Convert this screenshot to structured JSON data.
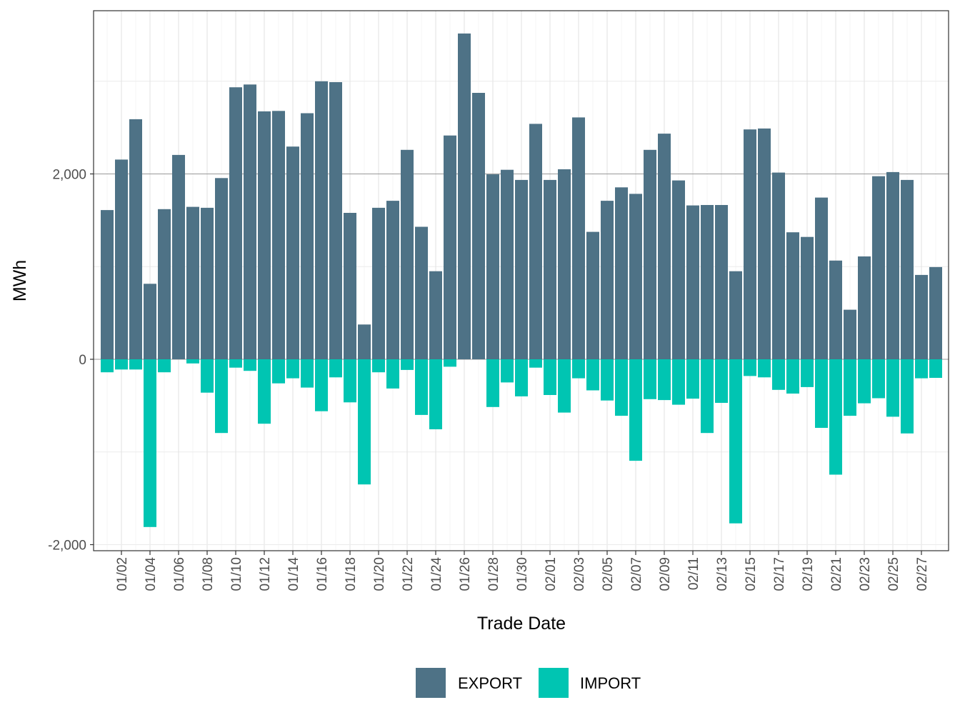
{
  "chart_data": {
    "type": "bar",
    "stacked": "diverging",
    "title": "",
    "xlabel": "Trade Date",
    "ylabel": "MWh",
    "ylim": [
      -2000,
      3600
    ],
    "y_ticks": [
      -2000,
      0,
      2000
    ],
    "y_tick_labels": [
      "-2,000",
      "0",
      "2,000"
    ],
    "categories": [
      "01/01",
      "01/02",
      "01/03",
      "01/04",
      "01/05",
      "01/06",
      "01/07",
      "01/08",
      "01/09",
      "01/10",
      "01/11",
      "01/12",
      "01/13",
      "01/14",
      "01/15",
      "01/16",
      "01/17",
      "01/18",
      "01/19",
      "01/20",
      "01/21",
      "01/22",
      "01/23",
      "01/24",
      "01/25",
      "01/26",
      "01/27",
      "01/28",
      "01/29",
      "01/30",
      "01/31",
      "02/01",
      "02/02",
      "02/03",
      "02/04",
      "02/05",
      "02/06",
      "02/07",
      "02/08",
      "02/09",
      "02/10",
      "02/11",
      "02/12",
      "02/13",
      "02/14",
      "02/15",
      "02/16",
      "02/17",
      "02/18",
      "02/19",
      "02/20",
      "02/21",
      "02/22",
      "02/23",
      "02/24",
      "02/25",
      "02/26",
      "02/27",
      "02/28"
    ],
    "x_tick_labels": [
      "01/02",
      "01/04",
      "01/06",
      "01/08",
      "01/10",
      "01/12",
      "01/14",
      "01/16",
      "01/18",
      "01/20",
      "01/22",
      "01/24",
      "01/26",
      "01/28",
      "01/30",
      "02/01",
      "02/03",
      "02/05",
      "02/07",
      "02/09",
      "02/11",
      "02/13",
      "02/15",
      "02/17",
      "02/19",
      "02/21",
      "02/23",
      "02/25",
      "02/27"
    ],
    "series": [
      {
        "name": "EXPORT",
        "color": "#4e7286",
        "values": [
          1610,
          2155,
          2590,
          815,
          1620,
          2205,
          1645,
          1635,
          1955,
          2935,
          2965,
          2675,
          2680,
          2295,
          2655,
          3000,
          2990,
          1580,
          375,
          1635,
          1710,
          2260,
          1430,
          950,
          2415,
          3515,
          2875,
          1995,
          2045,
          1935,
          2540,
          1935,
          2050,
          2610,
          1375,
          1710,
          1855,
          1785,
          2260,
          2435,
          1930,
          1660,
          1665,
          1665,
          950,
          2480,
          2490,
          2015,
          1370,
          1320,
          1745,
          1065,
          535,
          1110,
          1975,
          2020,
          1935,
          910,
          995
        ]
      },
      {
        "name": "IMPORT",
        "color": "#00c5b2",
        "values": [
          -140,
          -110,
          -110,
          -1810,
          -140,
          0,
          -45,
          -360,
          -795,
          -90,
          -125,
          -695,
          -260,
          -205,
          -305,
          -560,
          -195,
          -465,
          -1350,
          -140,
          -315,
          -115,
          -600,
          -755,
          -80,
          0,
          0,
          -515,
          -250,
          -400,
          -90,
          -385,
          -575,
          -205,
          -335,
          -445,
          -610,
          -1095,
          -430,
          -440,
          -490,
          -425,
          -795,
          -470,
          -1770,
          -180,
          -195,
          -330,
          -370,
          -300,
          -740,
          -1245,
          -610,
          -475,
          -420,
          -620,
          -800,
          -205,
          -200
        ]
      }
    ],
    "legend_position": "bottom",
    "grid": true
  }
}
